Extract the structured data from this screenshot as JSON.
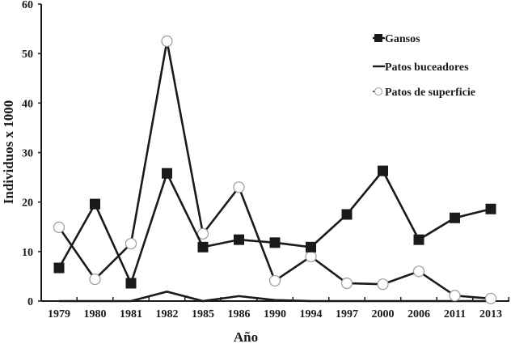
{
  "chart_data": {
    "type": "line",
    "title": "",
    "xlabel": "Año",
    "ylabel": "Individuos x 1000",
    "ylim": [
      0,
      60
    ],
    "yticks": [
      0,
      10,
      20,
      30,
      40,
      50,
      60
    ],
    "grid": false,
    "legend_position": "upper right",
    "categories": [
      "1979",
      "1980",
      "1981",
      "1982",
      "1985",
      "1986",
      "1990",
      "1994",
      "1997",
      "2000",
      "2006",
      "2011",
      "2013"
    ],
    "series": [
      {
        "name": "Gansos",
        "marker": "filled-square",
        "color": "#1a1a1a",
        "values": [
          6.7,
          19.6,
          3.6,
          25.8,
          10.9,
          12.4,
          11.8,
          10.9,
          17.5,
          26.3,
          12.4,
          16.8,
          18.6
        ]
      },
      {
        "name": "Patos buceadores",
        "marker": "none",
        "color": "#1a1a1a",
        "values": [
          0,
          0,
          0,
          1.9,
          0,
          1.0,
          0.2,
          0,
          0,
          0,
          0,
          0,
          0
        ]
      },
      {
        "name": "Patos de superficie",
        "marker": "open-circle",
        "color": "#1a1a1a",
        "values": [
          14.9,
          4.4,
          11.6,
          52.5,
          13.6,
          23.0,
          4.1,
          9.0,
          3.6,
          3.4,
          6.0,
          1.1,
          0.5
        ]
      }
    ]
  }
}
